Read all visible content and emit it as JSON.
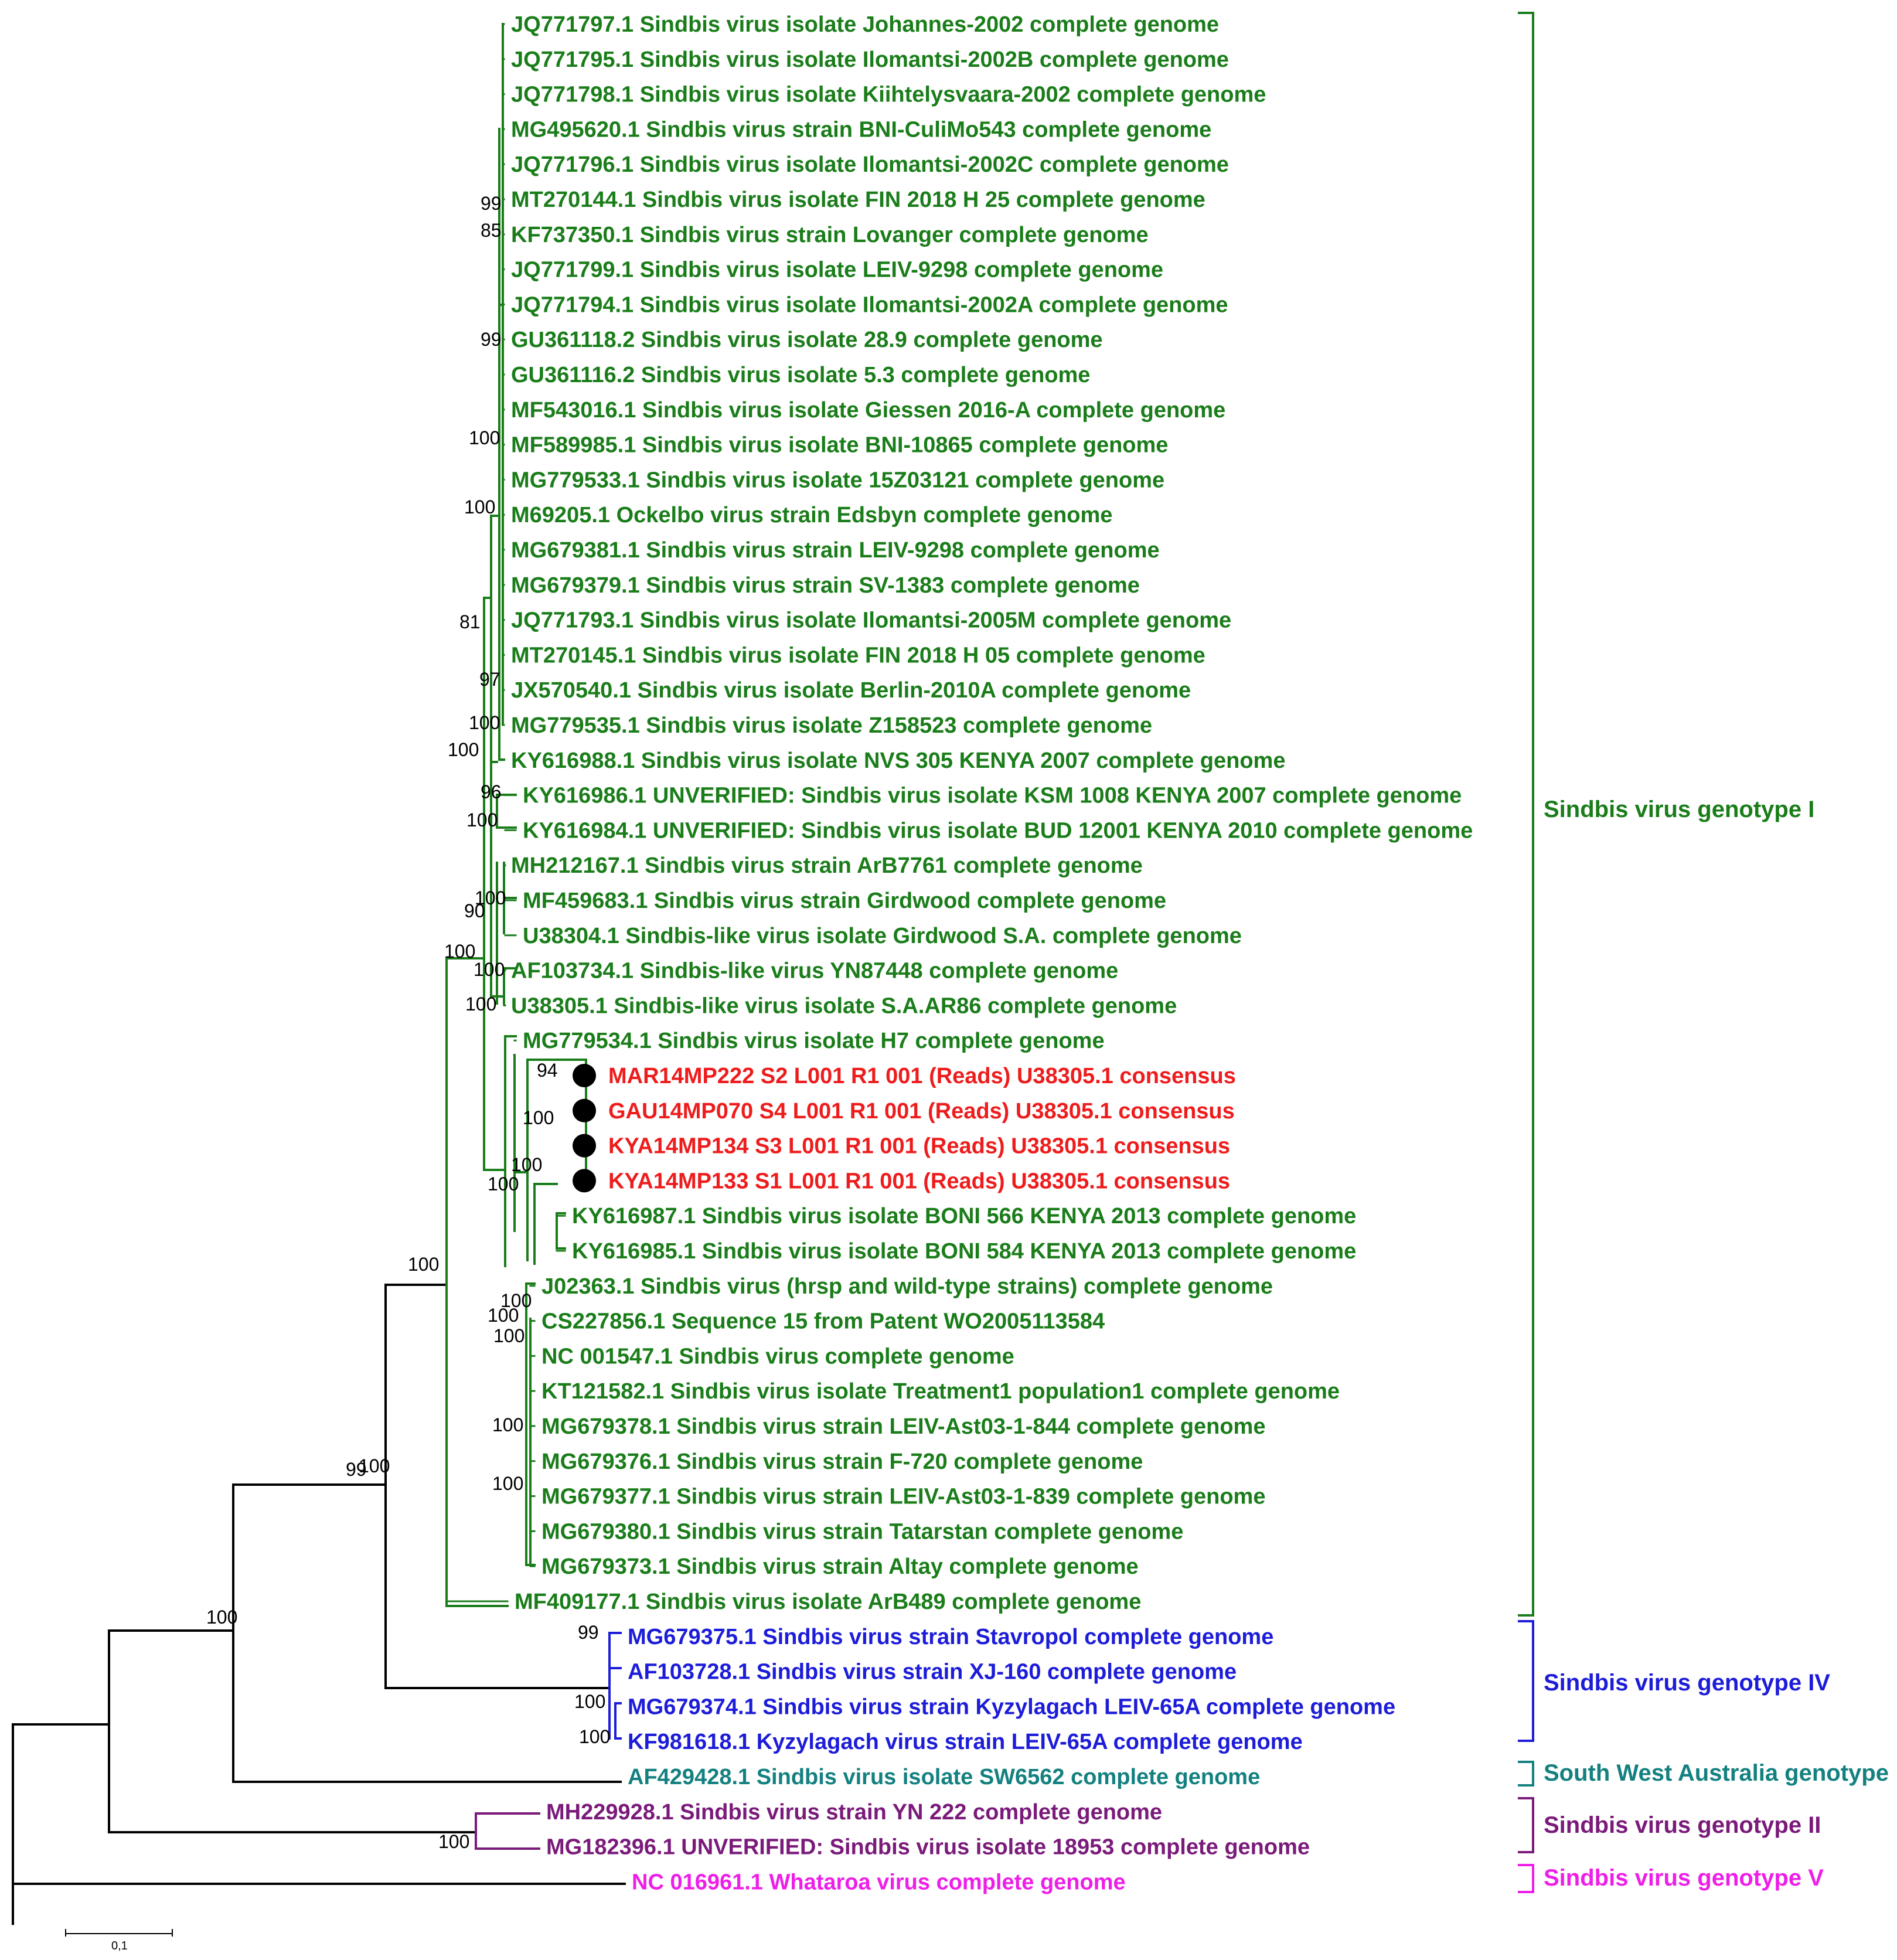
{
  "colors": {
    "black": "#000000",
    "genotype_I": "#1a7d1a",
    "genotype_IV": "#1c1cd9",
    "south_west_australia": "#148080",
    "genotype_II": "#7a1a7a",
    "genotype_V": "#ee1ee8",
    "study_samples": "#ee1c1c"
  },
  "leaves": [
    {
      "text": "JQ771797.1 Sindbis virus isolate Johannes-2002 complete genome",
      "color": "genotype_I"
    },
    {
      "text": "JQ771795.1 Sindbis virus isolate Ilomantsi-2002B complete genome",
      "color": "genotype_I"
    },
    {
      "text": "JQ771798.1 Sindbis virus isolate Kiihtelysvaara-2002 complete genome",
      "color": "genotype_I"
    },
    {
      "text": "MG495620.1 Sindbis virus strain BNI-CuliMo543 complete genome",
      "color": "genotype_I"
    },
    {
      "text": "JQ771796.1 Sindbis virus isolate Ilomantsi-2002C complete genome",
      "color": "genotype_I"
    },
    {
      "text": "MT270144.1 Sindbis virus isolate FIN 2018 H 25 complete genome",
      "color": "genotype_I"
    },
    {
      "text": "KF737350.1 Sindbis virus strain Lovanger complete genome",
      "color": "genotype_I"
    },
    {
      "text": "JQ771799.1 Sindbis virus isolate LEIV-9298 complete genome",
      "color": "genotype_I"
    },
    {
      "text": "JQ771794.1 Sindbis virus isolate Ilomantsi-2002A complete genome",
      "color": "genotype_I"
    },
    {
      "text": "GU361118.2 Sindbis virus isolate 28.9 complete genome",
      "color": "genotype_I"
    },
    {
      "text": "GU361116.2 Sindbis virus isolate 5.3 complete genome",
      "color": "genotype_I"
    },
    {
      "text": "MF543016.1 Sindbis virus isolate Giessen 2016-A complete genome",
      "color": "genotype_I"
    },
    {
      "text": "MF589985.1 Sindbis virus isolate BNI-10865 complete genome",
      "color": "genotype_I"
    },
    {
      "text": "MG779533.1 Sindbis virus isolate 15Z03121 complete genome",
      "color": "genotype_I"
    },
    {
      "text": "M69205.1 Ockelbo virus strain Edsbyn complete genome",
      "color": "genotype_I"
    },
    {
      "text": "MG679381.1 Sindbis virus strain LEIV-9298 complete genome",
      "color": "genotype_I"
    },
    {
      "text": "MG679379.1 Sindbis virus strain SV-1383 complete genome",
      "color": "genotype_I"
    },
    {
      "text": "JQ771793.1 Sindbis virus isolate Ilomantsi-2005M complete genome",
      "color": "genotype_I"
    },
    {
      "text": "MT270145.1 Sindbis virus isolate FIN 2018 H 05 complete genome",
      "color": "genotype_I"
    },
    {
      "text": "JX570540.1 Sindbis virus isolate Berlin-2010A complete genome",
      "color": "genotype_I"
    },
    {
      "text": "MG779535.1 Sindbis virus isolate Z158523 complete genome",
      "color": "genotype_I"
    },
    {
      "text": "KY616988.1 Sindbis virus isolate NVS 305 KENYA 2007 complete genome",
      "color": "genotype_I"
    },
    {
      "text": "KY616986.1 UNVERIFIED: Sindbis virus isolate KSM 1008 KENYA 2007 complete genome",
      "color": "genotype_I"
    },
    {
      "text": "KY616984.1 UNVERIFIED: Sindbis virus isolate BUD 12001 KENYA 2010 complete genome",
      "color": "genotype_I"
    },
    {
      "text": "MH212167.1 Sindbis virus strain ArB7761 complete genome",
      "color": "genotype_I"
    },
    {
      "text": "MF459683.1 Sindbis virus strain Girdwood complete genome",
      "color": "genotype_I"
    },
    {
      "text": "U38304.1 Sindbis-like virus isolate Girdwood S.A. complete genome",
      "color": "genotype_I"
    },
    {
      "text": "AF103734.1 Sindbis-like virus YN87448 complete genome",
      "color": "genotype_I"
    },
    {
      "text": "U38305.1 Sindbis-like virus isolate S.A.AR86 complete genome",
      "color": "genotype_I"
    },
    {
      "text": "MG779534.1 Sindbis virus isolate H7 complete genome",
      "color": "genotype_I"
    },
    {
      "text": "MAR14MP222 S2 L001 R1 001 (Reads) U38305.1 consensus",
      "color": "study_samples",
      "marker": true
    },
    {
      "text": "GAU14MP070 S4 L001 R1 001 (Reads) U38305.1 consensus",
      "color": "study_samples",
      "marker": true
    },
    {
      "text": "KYA14MP134 S3 L001 R1 001 (Reads) U38305.1 consensus",
      "color": "study_samples",
      "marker": true
    },
    {
      "text": "KYA14MP133 S1 L001 R1 001 (Reads) U38305.1 consensus",
      "color": "study_samples",
      "marker": true
    },
    {
      "text": "KY616987.1 Sindbis virus isolate BONI 566 KENYA 2013 complete genome",
      "color": "genotype_I"
    },
    {
      "text": "KY616985.1 Sindbis virus isolate BONI 584 KENYA 2013 complete genome",
      "color": "genotype_I"
    },
    {
      "text": "J02363.1 Sindbis virus (hrsp and wild-type strains) complete genome",
      "color": "genotype_I"
    },
    {
      "text": "CS227856.1 Sequence 15 from Patent WO2005113584",
      "color": "genotype_I"
    },
    {
      "text": "NC 001547.1 Sindbis virus complete genome",
      "color": "genotype_I"
    },
    {
      "text": "KT121582.1 Sindbis virus isolate Treatment1 population1 complete genome",
      "color": "genotype_I"
    },
    {
      "text": "MG679378.1 Sindbis virus strain LEIV-Ast03-1-844 complete genome",
      "color": "genotype_I"
    },
    {
      "text": "MG679376.1 Sindbis virus strain F-720 complete genome",
      "color": "genotype_I"
    },
    {
      "text": "MG679377.1 Sindbis virus strain LEIV-Ast03-1-839 complete genome",
      "color": "genotype_I"
    },
    {
      "text": "MG679380.1 Sindbis virus strain Tatarstan complete genome",
      "color": "genotype_I"
    },
    {
      "text": "MG679373.1 Sindbis virus strain Altay complete genome",
      "color": "genotype_I"
    },
    {
      "text": "MF409177.1 Sindbis virus isolate ArB489 complete genome",
      "color": "genotype_I"
    },
    {
      "text": "MG679375.1 Sindbis virus strain Stavropol complete genome",
      "color": "genotype_IV"
    },
    {
      "text": "AF103728.1 Sindbis virus strain XJ-160 complete genome",
      "color": "genotype_IV"
    },
    {
      "text": "MG679374.1 Sindbis virus strain Kyzylagach LEIV-65A complete genome",
      "color": "genotype_IV"
    },
    {
      "text": "KF981618.1 Kyzylagach virus strain LEIV-65A complete genome",
      "color": "genotype_IV"
    },
    {
      "text": "AF429428.1 Sindbis virus isolate SW6562 complete genome",
      "color": "south_west_australia"
    },
    {
      "text": "MH229928.1 Sindbis virus strain YN 222 complete genome",
      "color": "genotype_II"
    },
    {
      "text": "MG182396.1 UNVERIFIED: Sindbis virus isolate 18953 complete genome",
      "color": "genotype_II"
    },
    {
      "text": "NC 016961.1 Whataroa virus complete genome",
      "color": "genotype_V"
    }
  ],
  "bootstrap": [
    "99",
    "85",
    "99",
    "100",
    "100",
    "81",
    "97",
    "100",
    "100",
    "96",
    "100",
    "100",
    "90",
    "100",
    "100",
    "100",
    "94",
    "100",
    "100",
    "100",
    "100",
    "99",
    "100",
    "100",
    "100",
    "100",
    "100",
    "100",
    "99",
    "100",
    "100",
    "100",
    "100",
    "100"
  ],
  "groups": [
    {
      "label": "Sindbis virus genotype I",
      "color": "genotype_I"
    },
    {
      "label": "Sindbis virus genotype IV",
      "color": "genotype_IV"
    },
    {
      "label": "South West Australia genotype",
      "color": "south_west_australia"
    },
    {
      "label": "Sindbis virus genotype II",
      "color": "genotype_II"
    },
    {
      "label": "Sindbis virus genotype V",
      "color": "genotype_V"
    }
  ],
  "scale_bar": {
    "label": "0,1"
  }
}
